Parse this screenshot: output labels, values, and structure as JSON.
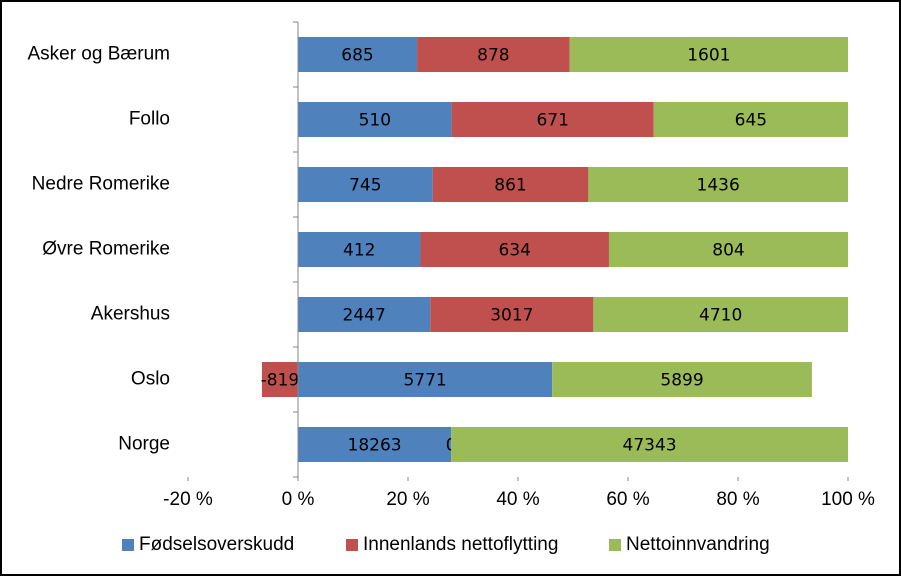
{
  "chart_data": {
    "type": "stacked-bar-100-horizontal",
    "categories": [
      "Asker og Bærum",
      "Follo",
      "Nedre Romerike",
      "Øvre Romerike",
      "Akershus",
      "Oslo",
      "Norge"
    ],
    "series": [
      {
        "name": "Fødselsoverskudd",
        "color": "#4f81bd",
        "values": [
          685,
          510,
          745,
          412,
          2447,
          5771,
          18263
        ]
      },
      {
        "name": "Innenlands nettoflytting",
        "color": "#c0504d",
        "values": [
          878,
          671,
          861,
          634,
          3017,
          -819,
          0
        ]
      },
      {
        "name": "Nettoinnvandring",
        "color": "#9bbb59",
        "values": [
          1601,
          645,
          1436,
          804,
          4710,
          5899,
          47343
        ]
      }
    ],
    "xlim": [
      -20,
      100
    ],
    "xticks": [
      {
        "value": -20,
        "label": "-20 %"
      },
      {
        "value": 0,
        "label": "0 %"
      },
      {
        "value": 20,
        "label": "20 %"
      },
      {
        "value": 40,
        "label": "40 %"
      },
      {
        "value": 60,
        "label": "60 %"
      },
      {
        "value": 80,
        "label": "80 %"
      },
      {
        "value": 100,
        "label": "100 %"
      }
    ],
    "legend": "bottom"
  }
}
